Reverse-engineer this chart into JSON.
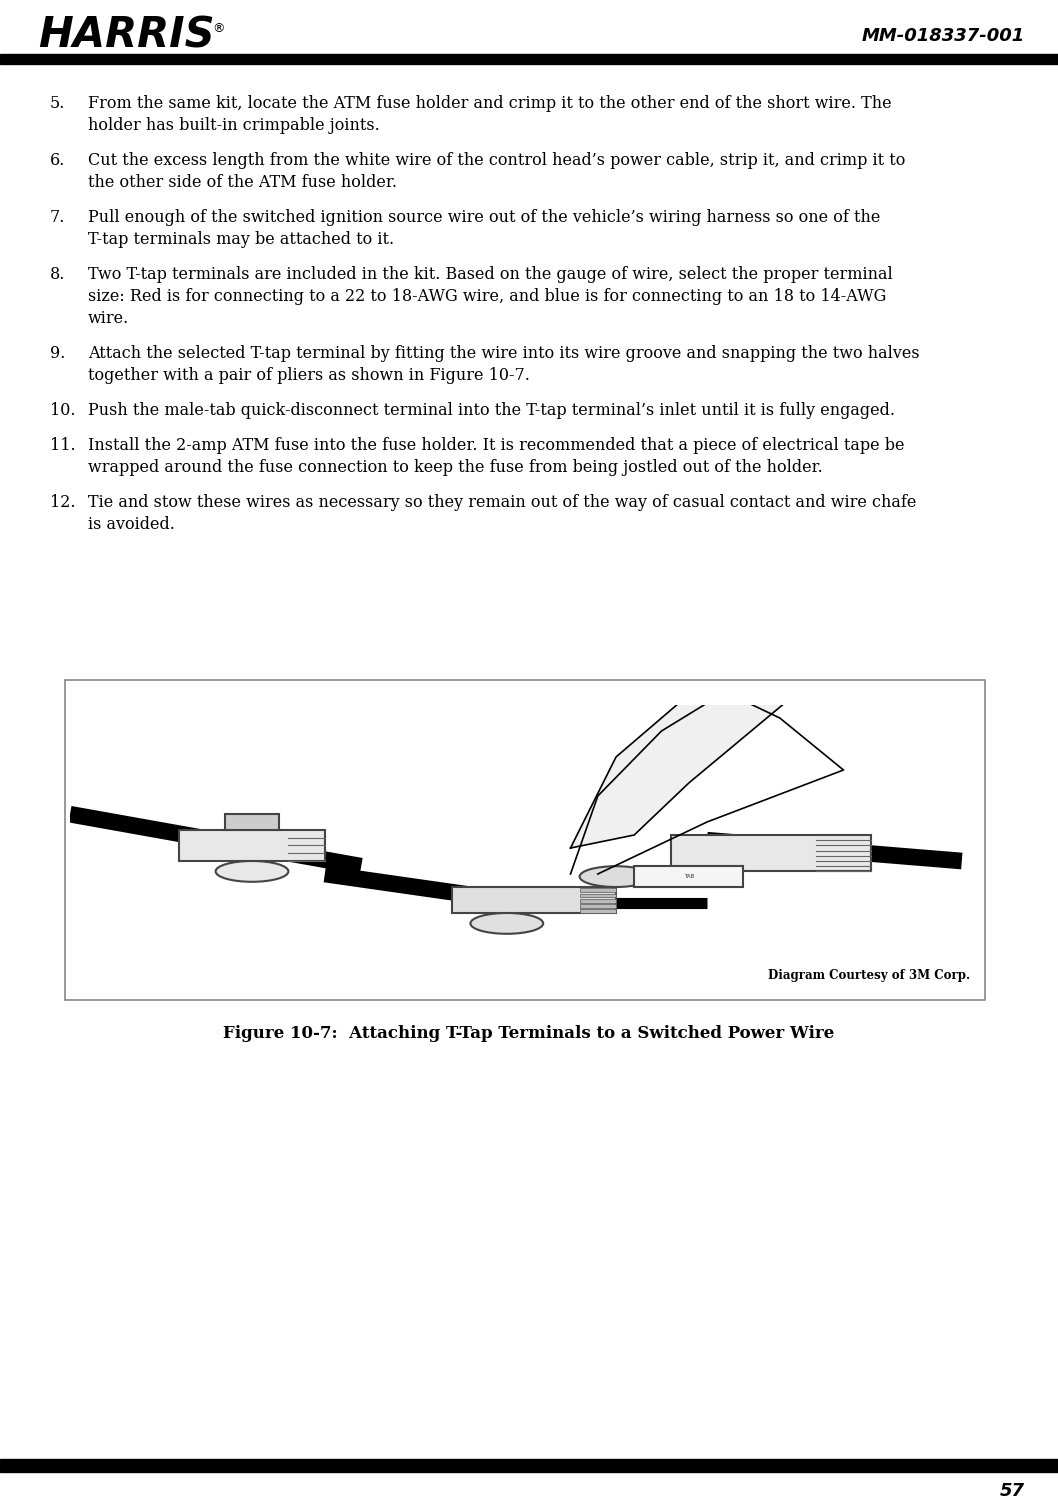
{
  "page_number": "57",
  "doc_number": "MM-018337-001",
  "background_color": "#ffffff",
  "body_text_color": "#000000",
  "items": [
    {
      "num": "5.",
      "text": "From the same kit, locate the ATM fuse holder and crimp it to the other end of the short wire. The\nholder has built-in crimpable joints."
    },
    {
      "num": "6.",
      "text": "Cut the excess length from the white wire of the control head’s power cable, strip it, and crimp it to\nthe other side of the ATM fuse holder."
    },
    {
      "num": "7.",
      "text": "Pull enough of the switched ignition source wire out of the vehicle’s wiring harness so one of the\nT-tap terminals may be attached to it."
    },
    {
      "num": "8.",
      "text": "Two T-tap terminals are included in the kit. Based on the gauge of wire, select the proper terminal\nsize: Red is for connecting to a 22 to 18-AWG wire, and blue is for connecting to an 18 to 14-AWG\nwire."
    },
    {
      "num": "9.",
      "text": "Attach the selected T-tap terminal by fitting the wire into its wire groove and snapping the two halves\ntogether with a pair of pliers as shown in Figure 10-7."
    },
    {
      "num": "10.",
      "text": "Push the male-tab quick-disconnect terminal into the T-tap terminal’s inlet until it is fully engaged."
    },
    {
      "num": "11.",
      "text": "Install the 2-amp ATM fuse into the fuse holder. It is recommended that a piece of electrical tape be\nwrapped around the fuse connection to keep the fuse from being jostled out of the holder."
    },
    {
      "num": "12.",
      "text": "Tie and stow these wires as necessary so they remain out of the way of casual contact and wire chafe\nis avoided."
    }
  ],
  "diagram_courtesy": "Diagram Courtesy of 3M Corp.",
  "figure_caption": "Figure 10-7:  Attaching T-Tap Terminals to a Switched Power Wire"
}
